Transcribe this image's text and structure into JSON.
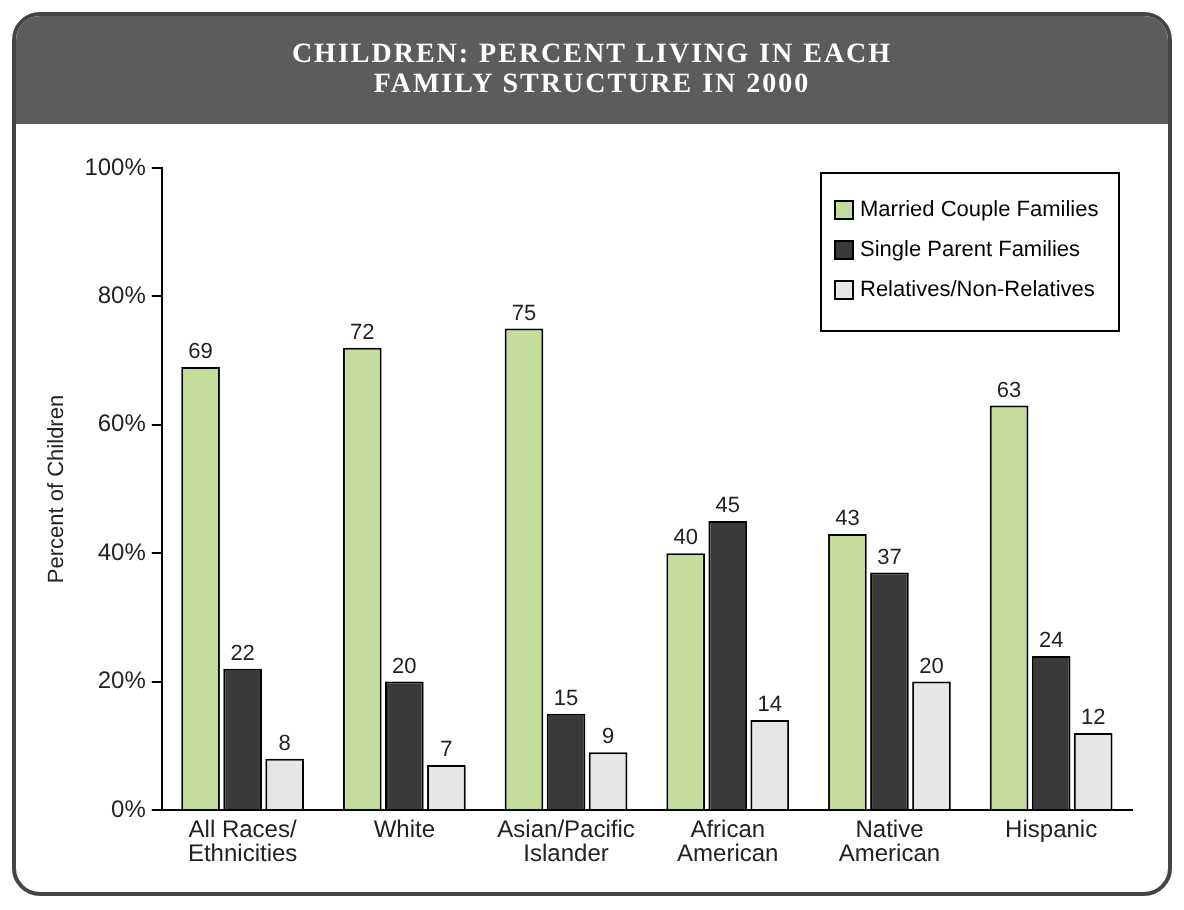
{
  "chart_data": {
    "type": "bar",
    "title": "CHILDREN: PERCENT LIVING IN EACH FAMILY STRUCTURE IN 2000",
    "ylabel": "Percent of Children",
    "categories": [
      "All Races/ Ethnicities",
      "White",
      "Asian/Pacific Islander",
      "African American",
      "Native American",
      "Hispanic"
    ],
    "series": [
      {
        "name": "Married Couple Families",
        "color": "#c4dc9c",
        "values": [
          69,
          72,
          75,
          40,
          43,
          63
        ]
      },
      {
        "name": "Single Parent Families",
        "color": "#3a3a3a",
        "values": [
          22,
          20,
          15,
          45,
          37,
          24
        ]
      },
      {
        "name": "Relatives/Non-Relatives",
        "color": "#e6e6e6",
        "values": [
          8,
          7,
          9,
          14,
          20,
          12
        ]
      }
    ],
    "ylim": [
      0,
      100
    ],
    "yticks": [
      {
        "value": 0,
        "label": "0%"
      },
      {
        "value": 20,
        "label": "20%"
      },
      {
        "value": 40,
        "label": "40%"
      },
      {
        "value": 60,
        "label": "60%"
      },
      {
        "value": 80,
        "label": "80%"
      },
      {
        "value": 100,
        "label": "100%"
      }
    ],
    "grid": false,
    "legend": "top right",
    "data_labels": true
  }
}
